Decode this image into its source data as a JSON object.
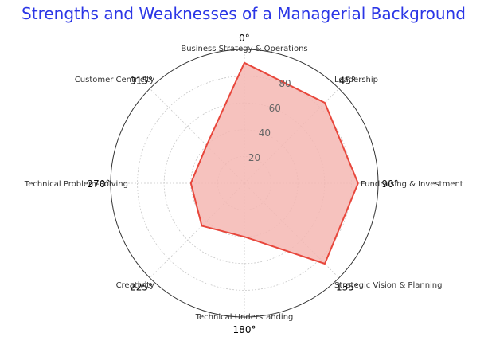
{
  "chart_data": {
    "type": "radar",
    "title": "Strengths and Weaknesses of a Managerial Background",
    "categories": [
      "Business Strategy & Operations",
      "Leadership",
      "Fundraising & Investment",
      "Strategic Vision & Planning",
      "Technical Understanding",
      "Creativity",
      "Technical Problem-Solving",
      "Customer Centricity"
    ],
    "angle_labels": [
      "0°",
      "45°",
      "90°",
      "135°",
      "180°",
      "225°",
      "270°",
      "315°"
    ],
    "values": [
      90,
      85,
      85,
      85,
      40,
      45,
      40,
      40
    ],
    "r_ticks": [
      20,
      40,
      60,
      80
    ],
    "r_tick_labels": [
      "20",
      "40",
      "60",
      "80"
    ],
    "rlim": [
      0,
      100
    ],
    "grid": true,
    "colors": {
      "line": "#e8473c",
      "fill": "#f4b7b3",
      "title": "#2b36e6",
      "grid": "#c8c8c8",
      "frame": "#333333"
    }
  }
}
